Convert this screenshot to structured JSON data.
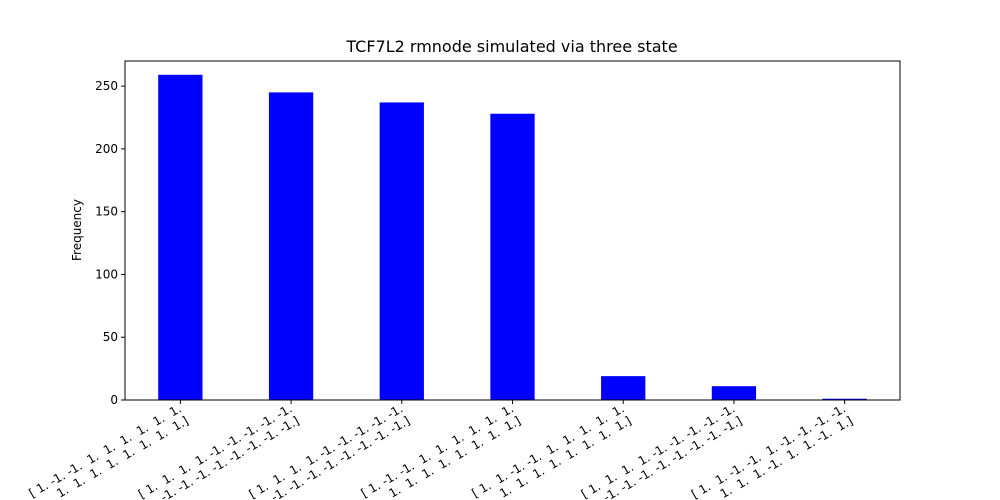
{
  "chart_data": {
    "type": "bar",
    "title": "TCF7L2 rmnode simulated via three state",
    "xlabel": "",
    "ylabel": "Frequency",
    "ylim": [
      0,
      270
    ],
    "yticks": [
      0,
      50,
      100,
      150,
      200,
      250
    ],
    "categories": [
      [
        "[ 1. -1. -1.  1.  1.  1.  1.  1.  1.",
        " 1.  1.  1.  1.  1.  1.  1.  1.]"
      ],
      [
        "[ 1.  1.  1.  1. -1. -1. -1. -1. -1.",
        " -1. -1. -1. -1. -1. -1. -1. -1.]"
      ],
      [
        "[ 1.  1.  1.  1. -1. -1. -1. -1. -1.",
        " -1. -1. -1. -1. -1. -1. -1. -1.]"
      ],
      [
        "[ 1. -1. -1.  1.  1.  1.  1.  1.  1.",
        " 1.  1.  1.  1.  1.  1.  1.  1.]"
      ],
      [
        "[ 1.  1. -1. -1.  1.  1.  1.  1.  1.",
        " 1.  1.  1.  1.  1.  1.  1.  1.]"
      ],
      [
        "[ 1.  1.  1.  1. -1. -1. -1. -1. -1.",
        " -1. -1. -1. -1. -1. -1. -1. -1.]"
      ],
      [
        "[ 1.  1. -1. -1.  1. -1. -1. -1. -1.",
        " 1.  1.  1. -1.  1.  1. -1.  1.]"
      ]
    ],
    "values": [
      259,
      245,
      237,
      228,
      19,
      11,
      1
    ],
    "bar_color": "#0000ff",
    "grid": false,
    "legend": "none"
  }
}
